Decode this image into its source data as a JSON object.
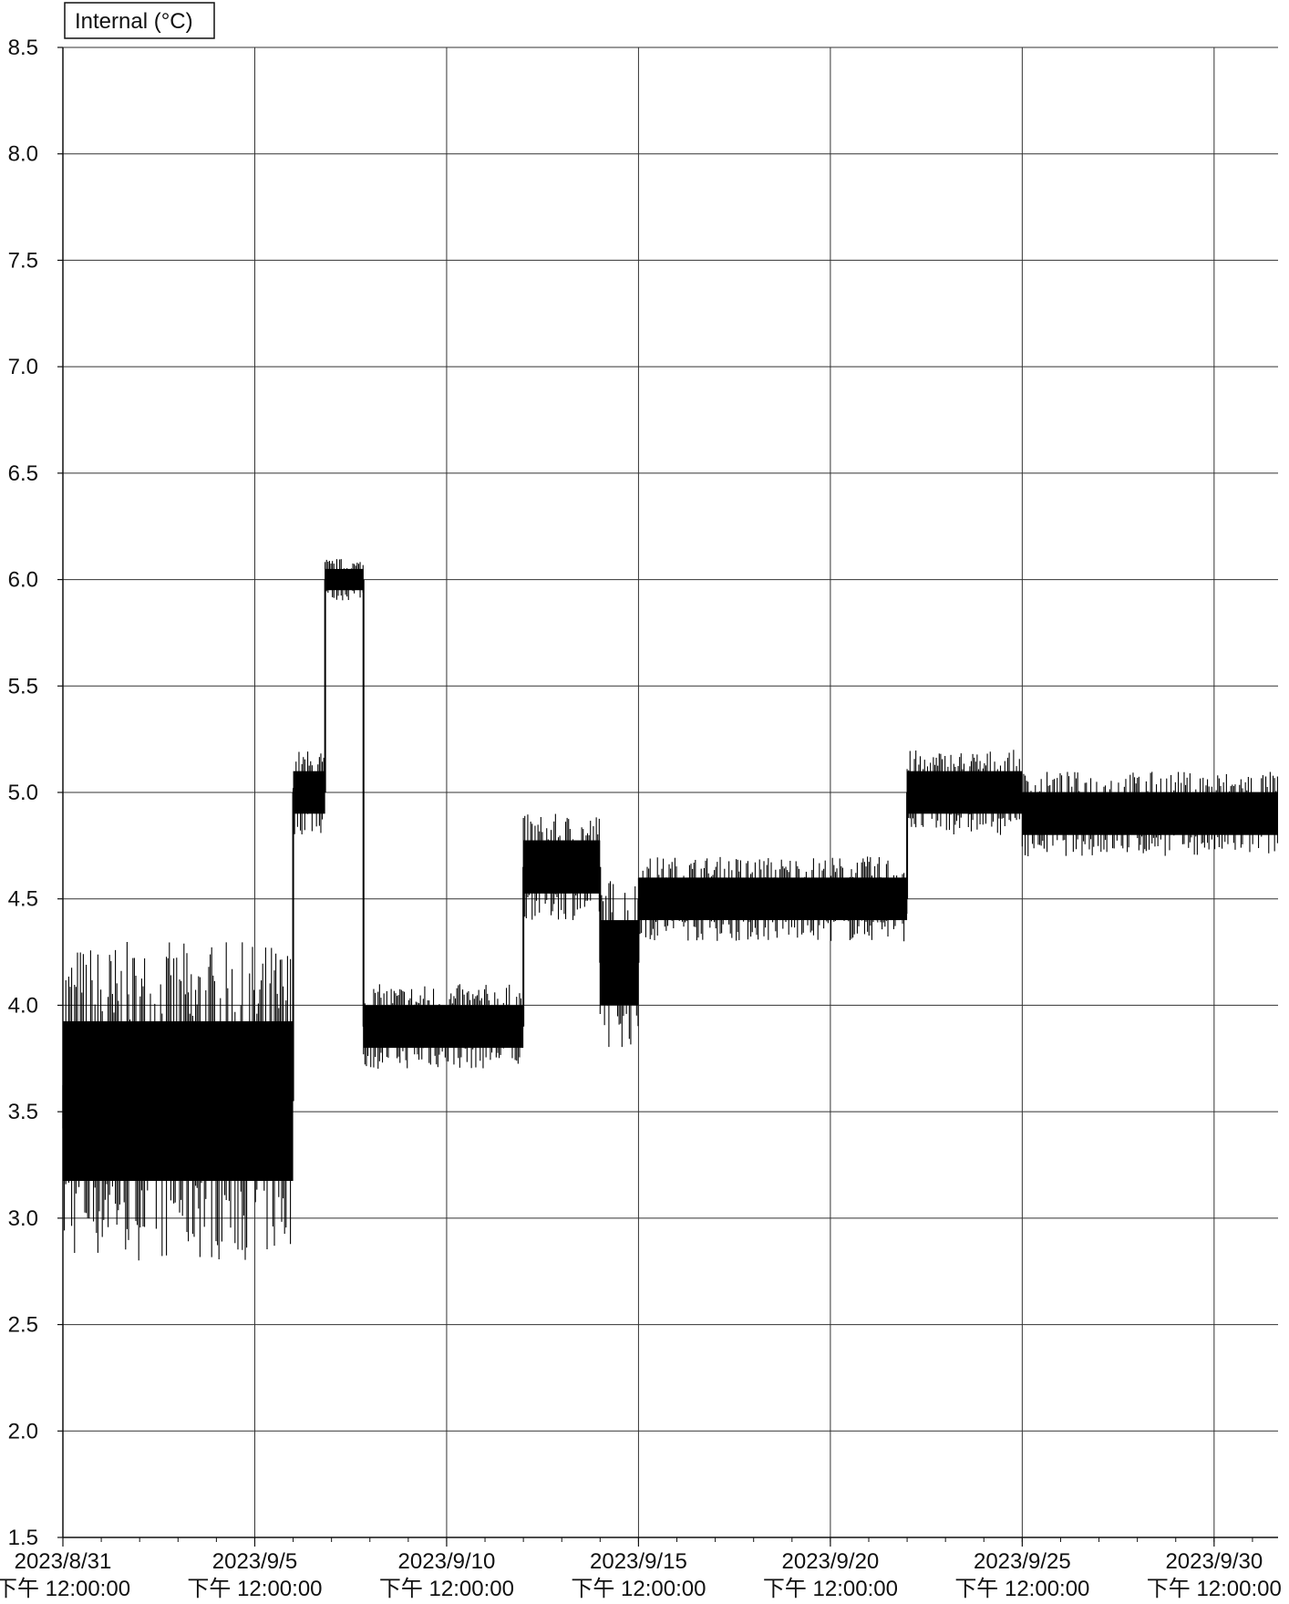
{
  "chart_data": {
    "type": "line",
    "title": "",
    "legend": {
      "label": "Internal (°C)",
      "placement": "top-left"
    },
    "xlabel": "",
    "ylabel": "",
    "ylim": [
      1.5,
      8.5
    ],
    "yticks": [
      "1.5",
      "2.0",
      "2.5",
      "3.0",
      "3.5",
      "4.0",
      "4.5",
      "5.0",
      "5.5",
      "6.0",
      "6.5",
      "7.0",
      "7.5",
      "8.0",
      "8.5"
    ],
    "xlim": [
      "2023/8/31 12:00:00",
      "2023/10/2 04:00:00"
    ],
    "xticks": [
      {
        "date": "2023/8/31",
        "time": "下午 12:00:00"
      },
      {
        "date": "2023/9/5",
        "time": "下午 12:00:00"
      },
      {
        "date": "2023/9/10",
        "time": "下午 12:00:00"
      },
      {
        "date": "2023/9/15",
        "time": "下午 12:00:00"
      },
      {
        "date": "2023/9/20",
        "time": "下午 12:00:00"
      },
      {
        "date": "2023/9/25",
        "time": "下午 12:00:00"
      },
      {
        "date": "2023/9/30",
        "time": "下午 12:00:00"
      }
    ],
    "grid": true,
    "series": [
      {
        "name": "Internal (°C)",
        "color": "#000000",
        "bands": [
          {
            "start": "2023/8/31 12:00",
            "end": "2023/9/6 12:00",
            "low": 2.8,
            "high": 4.3
          },
          {
            "start": "2023/9/6 12:00",
            "end": "2023/9/7 08:00",
            "low": 4.8,
            "high": 5.2
          },
          {
            "start": "2023/9/7 08:00",
            "end": "2023/9/8 08:00",
            "low": 5.9,
            "high": 6.1
          },
          {
            "start": "2023/9/8 08:00",
            "end": "2023/9/12 12:00",
            "low": 3.7,
            "high": 4.1
          },
          {
            "start": "2023/9/12 12:00",
            "end": "2023/9/14 12:00",
            "low": 4.4,
            "high": 4.9
          },
          {
            "start": "2023/9/14 12:00",
            "end": "2023/9/15 12:00",
            "low": 3.8,
            "high": 4.6
          },
          {
            "start": "2023/9/15 12:00",
            "end": "2023/9/22 12:00",
            "low": 4.3,
            "high": 4.7
          },
          {
            "start": "2023/9/22 12:00",
            "end": "2023/9/25 12:00",
            "low": 4.8,
            "high": 5.2
          },
          {
            "start": "2023/9/25 12:00",
            "end": "2023/10/2 04:00",
            "low": 4.7,
            "high": 5.1
          }
        ]
      }
    ]
  }
}
